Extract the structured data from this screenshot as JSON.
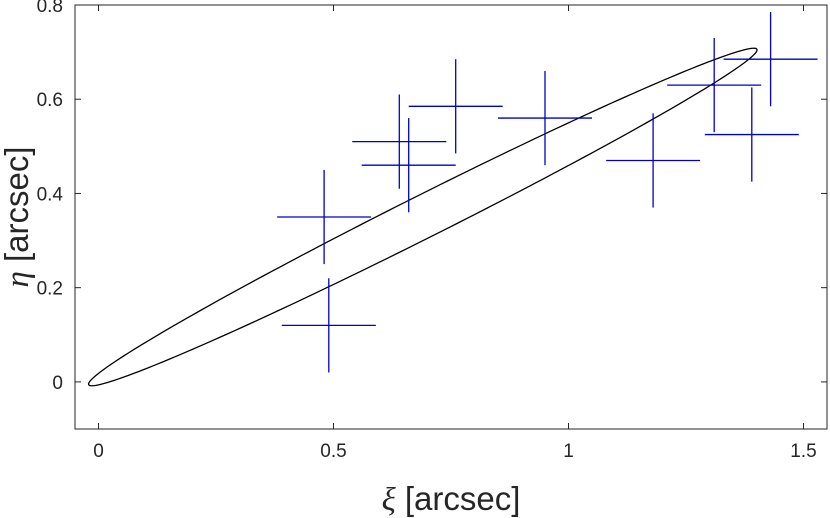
{
  "chart_data": {
    "type": "scatter",
    "xlabel_symbol": "ξ",
    "xlabel_text": " [arcsec]",
    "ylabel_symbol": "η",
    "ylabel_text": " [arcsec]",
    "xlim": [
      -0.05,
      1.55
    ],
    "ylim": [
      -0.1,
      0.8
    ],
    "xticks": [
      0,
      0.5,
      1,
      1.5
    ],
    "xtick_labels": [
      "0",
      "0.5",
      "1",
      "1.5"
    ],
    "yticks": [
      0,
      0.2,
      0.4,
      0.6,
      0.8
    ],
    "ytick_labels": [
      "0",
      "0.2",
      "0.4",
      "0.6",
      "0.8"
    ],
    "grid": false,
    "colors": {
      "points": "#0000cc",
      "ellipse": "#000000",
      "axes": "#262626"
    },
    "points": [
      {
        "x": 0.48,
        "y": 0.35,
        "xerr": 0.1,
        "yerr": 0.1
      },
      {
        "x": 0.49,
        "y": 0.12,
        "xerr": 0.1,
        "yerr": 0.1
      },
      {
        "x": 0.64,
        "y": 0.51,
        "xerr": 0.1,
        "yerr": 0.1
      },
      {
        "x": 0.66,
        "y": 0.46,
        "xerr": 0.1,
        "yerr": 0.1
      },
      {
        "x": 0.76,
        "y": 0.585,
        "xerr": 0.1,
        "yerr": 0.1
      },
      {
        "x": 0.95,
        "y": 0.56,
        "xerr": 0.1,
        "yerr": 0.1
      },
      {
        "x": 1.18,
        "y": 0.47,
        "xerr": 0.1,
        "yerr": 0.1
      },
      {
        "x": 1.31,
        "y": 0.63,
        "xerr": 0.1,
        "yerr": 0.1
      },
      {
        "x": 1.39,
        "y": 0.525,
        "xerr": 0.1,
        "yerr": 0.1
      },
      {
        "x": 1.43,
        "y": 0.685,
        "xerr": 0.1,
        "yerr": 0.1
      }
    ],
    "ellipse": {
      "center_x": 0.69,
      "center_y": 0.35,
      "semi_major": 0.795,
      "semi_minor": 0.045,
      "angle_deg": 26.6
    }
  }
}
